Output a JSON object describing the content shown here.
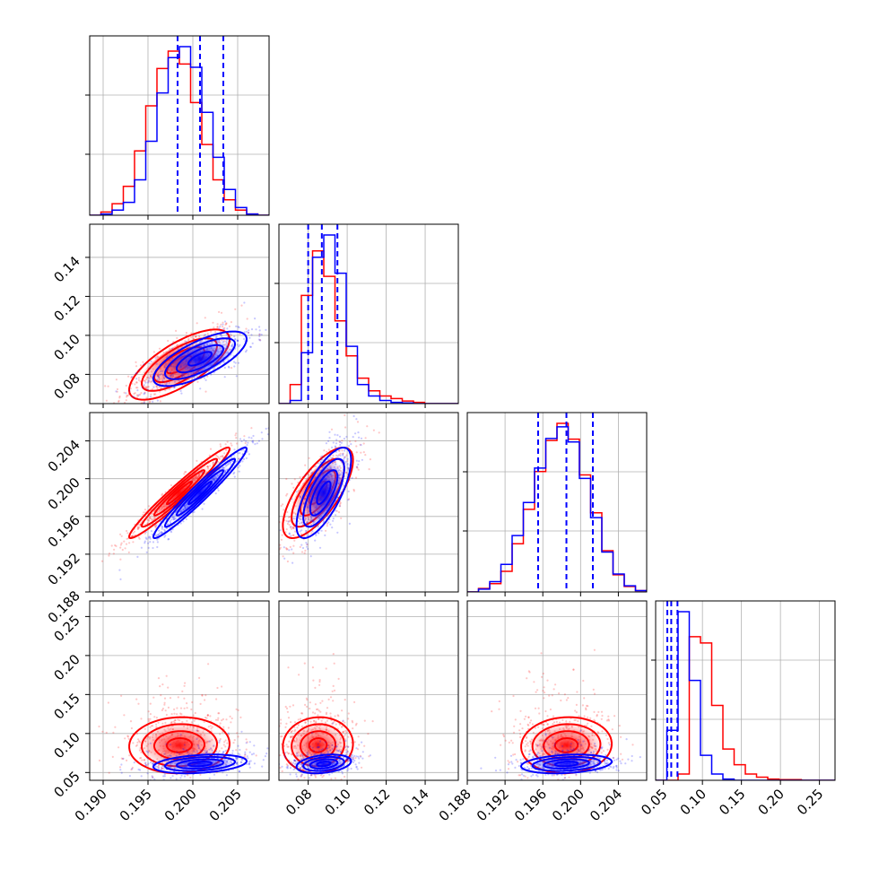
{
  "colors": {
    "series_a": "#ff0000",
    "series_b": "#0000ff",
    "grid": "#b0b0b0",
    "frame": "#000000"
  },
  "chart_data": {
    "type": "corner",
    "grid": true,
    "parameters": [
      {
        "ticks": [
          0.19,
          0.195,
          0.2,
          0.205
        ],
        "tick_labels": [
          "0.190",
          "0.195",
          "0.200",
          "0.205"
        ],
        "range": [
          0.1885,
          0.2085
        ]
      },
      {
        "ticks": [
          0.08,
          0.1,
          0.12,
          0.14
        ],
        "tick_labels": [
          "0.08",
          "0.10",
          "0.12",
          "0.14"
        ],
        "range": [
          0.065,
          0.157
        ]
      },
      {
        "ticks": [
          0.188,
          0.192,
          0.196,
          0.2,
          0.204
        ],
        "tick_labels": [
          "0.188",
          "0.192",
          "0.196",
          "0.200",
          "0.204"
        ],
        "range": [
          0.188,
          0.207
        ]
      },
      {
        "ticks": [
          0.05,
          0.1,
          0.15,
          0.2,
          0.25
        ],
        "tick_labels": [
          "0.05",
          "0.10",
          "0.15",
          "0.20",
          "0.25"
        ],
        "range": [
          0.04,
          0.27
        ]
      }
    ],
    "series": [
      {
        "color": "red",
        "mean": [
          0.1985,
          0.085,
          0.1985,
          0.085
        ],
        "std": [
          0.0028,
          0.009,
          0.0024,
          0.018
        ],
        "corr": [
          [
            1,
            0.72,
            0.97,
            0.05
          ],
          [
            0.72,
            1,
            0.72,
            0.05
          ],
          [
            0.97,
            0.72,
            1,
            0.05
          ],
          [
            0.05,
            0.05,
            0.05,
            1
          ]
        ],
        "hist": [
          [
            0.0,
            0.005,
            0.018,
            0.045,
            0.1,
            0.17,
            0.228,
            0.255,
            0.235,
            0.175,
            0.11,
            0.055,
            0.024,
            0.008,
            0.002,
            0.0
          ],
          [
            0.0,
            0.03,
            0.17,
            0.24,
            0.2,
            0.13,
            0.075,
            0.04,
            0.02,
            0.012,
            0.008,
            0.004,
            0.002,
            0.0,
            0.0,
            0.0
          ],
          [
            0.0,
            0.005,
            0.012,
            0.03,
            0.07,
            0.12,
            0.175,
            0.22,
            0.245,
            0.222,
            0.17,
            0.115,
            0.06,
            0.025,
            0.008,
            0.002
          ],
          [
            0.0,
            0.0,
            0.01,
            0.23,
            0.22,
            0.12,
            0.05,
            0.025,
            0.01,
            0.005,
            0.002,
            0.001,
            0.001,
            0.0,
            0.0,
            0.0
          ]
        ]
      },
      {
        "color": "blue",
        "mean": [
          0.2008,
          0.088,
          0.1985,
          0.061
        ],
        "std": [
          0.0026,
          0.007,
          0.0024,
          0.006
        ],
        "corr": [
          [
            1,
            0.72,
            0.97,
            0.3
          ],
          [
            0.72,
            1,
            0.72,
            0.3
          ],
          [
            0.97,
            0.72,
            1,
            0.25
          ],
          [
            0.3,
            0.3,
            0.25,
            1
          ]
        ],
        "hist": [
          [
            0.0,
            0.002,
            0.008,
            0.02,
            0.055,
            0.115,
            0.19,
            0.245,
            0.262,
            0.23,
            0.16,
            0.09,
            0.04,
            0.012,
            0.002,
            0.0
          ],
          [
            0.0,
            0.005,
            0.08,
            0.23,
            0.265,
            0.205,
            0.09,
            0.03,
            0.012,
            0.005,
            0.002,
            0.001,
            0.0,
            0.0,
            0.0,
            0.0
          ],
          [
            0.0,
            0.004,
            0.015,
            0.04,
            0.082,
            0.13,
            0.18,
            0.223,
            0.24,
            0.218,
            0.165,
            0.108,
            0.058,
            0.026,
            0.009,
            0.002
          ],
          [
            0.0,
            0.08,
            0.27,
            0.16,
            0.04,
            0.01,
            0.002,
            0.0,
            0.0,
            0.0,
            0.0,
            0.0,
            0.0,
            0.0,
            0.0,
            0.0
          ]
        ]
      }
    ],
    "quantiles": [
      [
        0.1983,
        0.2008,
        0.2034
      ],
      [
        0.08,
        0.087,
        0.095
      ],
      [
        0.1955,
        0.1985,
        0.2013
      ],
      [
        0.055,
        0.06,
        0.068
      ]
    ]
  }
}
